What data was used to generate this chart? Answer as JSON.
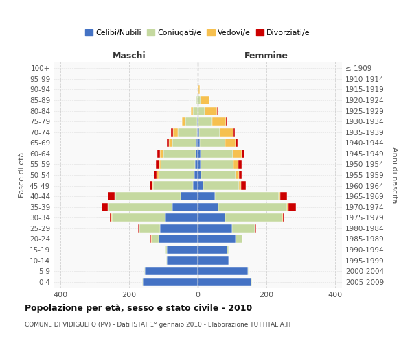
{
  "age_groups": [
    "0-4",
    "5-9",
    "10-14",
    "15-19",
    "20-24",
    "25-29",
    "30-34",
    "35-39",
    "40-44",
    "45-49",
    "50-54",
    "55-59",
    "60-64",
    "65-69",
    "70-74",
    "75-79",
    "80-84",
    "85-89",
    "90-94",
    "95-99",
    "100+"
  ],
  "birth_years": [
    "2005-2009",
    "2000-2004",
    "1995-1999",
    "1990-1994",
    "1985-1989",
    "1980-1984",
    "1975-1979",
    "1970-1974",
    "1965-1969",
    "1960-1964",
    "1955-1959",
    "1950-1954",
    "1945-1949",
    "1940-1944",
    "1935-1939",
    "1930-1934",
    "1925-1929",
    "1920-1924",
    "1915-1919",
    "1910-1914",
    "≤ 1909"
  ],
  "males": {
    "celibi": [
      160,
      155,
      90,
      90,
      115,
      110,
      95,
      75,
      50,
      15,
      10,
      8,
      6,
      5,
      3,
      2,
      0,
      0,
      0,
      0,
      0
    ],
    "coniugati": [
      2,
      2,
      2,
      4,
      20,
      60,
      155,
      185,
      190,
      115,
      105,
      100,
      95,
      70,
      55,
      35,
      15,
      5,
      1,
      0,
      0
    ],
    "vedovi": [
      0,
      0,
      0,
      0,
      2,
      2,
      2,
      2,
      2,
      2,
      5,
      5,
      10,
      10,
      15,
      10,
      5,
      2,
      0,
      0,
      0
    ],
    "divorziati": [
      0,
      0,
      0,
      0,
      2,
      2,
      5,
      18,
      20,
      8,
      8,
      10,
      8,
      5,
      5,
      0,
      0,
      0,
      0,
      0,
      0
    ]
  },
  "females": {
    "nubili": [
      155,
      145,
      90,
      85,
      110,
      100,
      80,
      60,
      50,
      15,
      10,
      8,
      7,
      5,
      3,
      2,
      2,
      0,
      0,
      0,
      0
    ],
    "coniugate": [
      2,
      2,
      2,
      4,
      20,
      65,
      165,
      200,
      185,
      105,
      100,
      95,
      95,
      75,
      60,
      40,
      18,
      8,
      1,
      0,
      0
    ],
    "vedove": [
      0,
      0,
      0,
      0,
      0,
      2,
      2,
      3,
      5,
      5,
      10,
      15,
      25,
      30,
      40,
      40,
      35,
      25,
      5,
      1,
      0
    ],
    "divorziate": [
      0,
      0,
      0,
      0,
      0,
      2,
      5,
      22,
      20,
      15,
      8,
      10,
      8,
      5,
      5,
      3,
      2,
      0,
      0,
      0,
      0
    ]
  },
  "colors": {
    "celibi": "#4472C4",
    "coniugati": "#c5d9a0",
    "vedovi": "#f6c050",
    "divorziati": "#cc0000"
  },
  "title": "Popolazione per età, sesso e stato civile - 2010",
  "subtitle": "COMUNE DI VIDIGULFO (PV) - Dati ISTAT 1° gennaio 2010 - Elaborazione TUTTITALIA.IT",
  "xlabel_left": "Maschi",
  "xlabel_right": "Femmine",
  "ylabel_left": "Fasce di età",
  "ylabel_right": "Anni di nascita",
  "xlim": 420,
  "legend_labels": [
    "Celibi/Nubili",
    "Coniugati/e",
    "Vedovi/e",
    "Divorziati/e"
  ],
  "bg_color": "#ffffff",
  "grid_color": "#cccccc"
}
